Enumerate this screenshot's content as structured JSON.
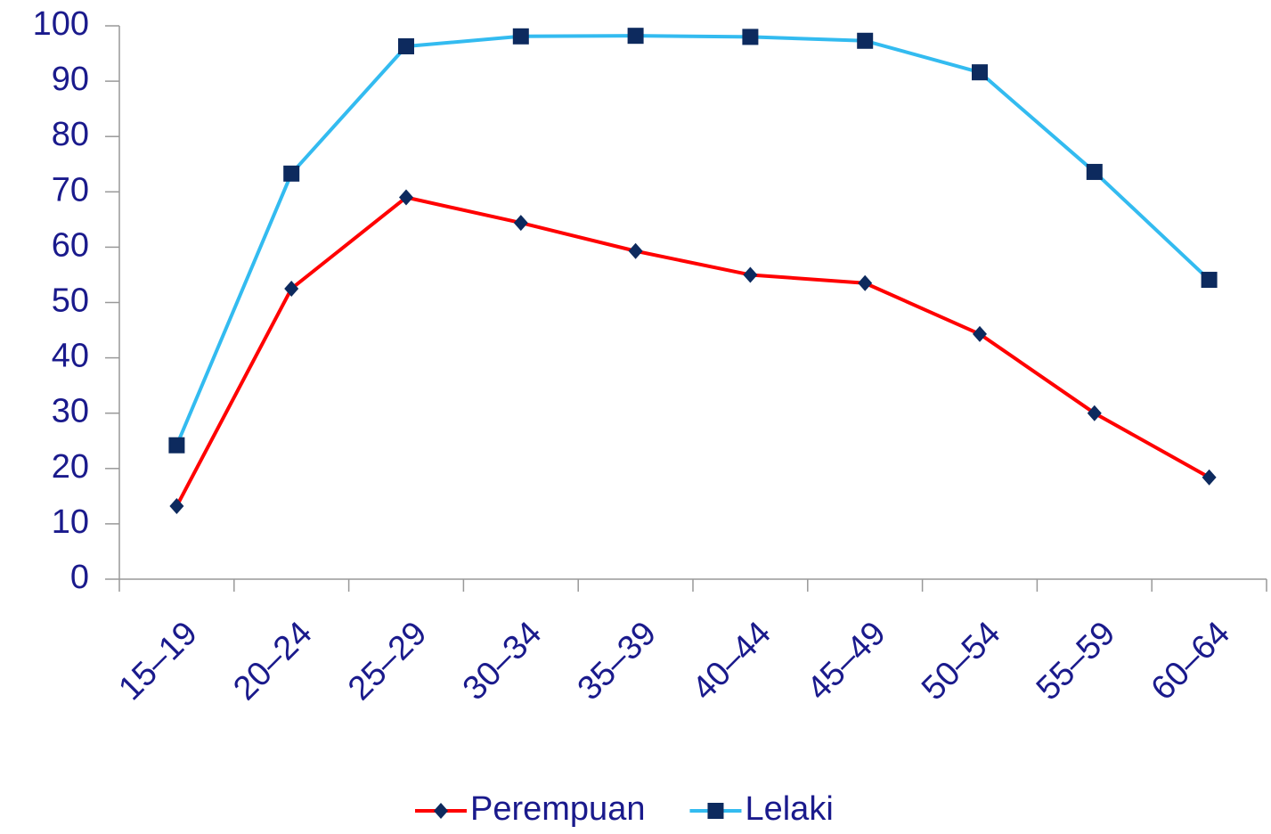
{
  "chart_data": {
    "type": "line",
    "categories": [
      "15–19",
      "20–24",
      "25–29",
      "30–34",
      "35–39",
      "40–44",
      "45–49",
      "50–54",
      "55–59",
      "60–64"
    ],
    "series": [
      {
        "name": "Perempuan",
        "color": "#ff0000",
        "marker": "diamond",
        "marker_color": "#0d2a5e",
        "values": [
          13.2,
          52.5,
          69,
          64.4,
          59.3,
          55,
          53.5,
          44.3,
          30,
          18.4
        ]
      },
      {
        "name": "Lelaki",
        "color": "#33bbf0",
        "marker": "square",
        "marker_color": "#0d2a5e",
        "values": [
          24.2,
          73.3,
          96.3,
          98.1,
          98.2,
          98,
          97.3,
          91.6,
          73.6,
          54.1
        ]
      }
    ],
    "ylim": [
      0,
      100
    ],
    "yticks": [
      0,
      10,
      20,
      30,
      40,
      50,
      60,
      70,
      80,
      90,
      100
    ],
    "grid": false,
    "legend": "bottom"
  }
}
